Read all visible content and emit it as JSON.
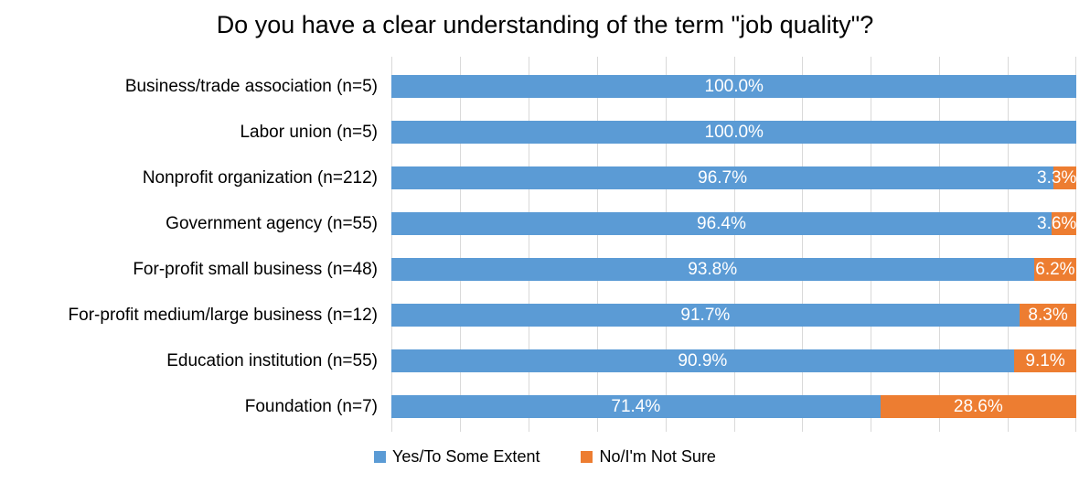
{
  "chart_data": {
    "type": "bar",
    "orientation": "horizontal",
    "stacking": "100%",
    "title": "Do you have a clear understanding of the term \"job quality\"?",
    "categories": [
      "Business/trade association (n=5)",
      "Labor union (n=5)",
      "Nonprofit organization (n=212)",
      "Government agency (n=55)",
      "For-profit small business (n=48)",
      "For-profit medium/large business (n=12)",
      "Education institution (n=55)",
      "Foundation (n=7)"
    ],
    "series": [
      {
        "name": "Yes/To Some Extent",
        "color": "#5B9BD5",
        "values": [
          100.0,
          100.0,
          96.7,
          96.4,
          93.8,
          91.7,
          90.9,
          71.4
        ],
        "labels": [
          "100.0%",
          "100.0%",
          "96.7%",
          "96.4%",
          "93.8%",
          "91.7%",
          "90.9%",
          "71.4%"
        ]
      },
      {
        "name": "No/I'm Not Sure",
        "color": "#ED7D31",
        "values": [
          0,
          0,
          3.3,
          3.6,
          6.2,
          8.3,
          9.1,
          28.6
        ],
        "labels": [
          "",
          "",
          "3.3%",
          "3.6%",
          "6.2%",
          "8.3%",
          "9.1%",
          "28.6%"
        ]
      }
    ],
    "xlim": [
      0,
      100
    ],
    "gridlines": {
      "step": 10,
      "color": "#D9D9D9"
    },
    "legend_position": "bottom",
    "data_label_color": "#FFFFFF",
    "background": "#FFFFFF"
  }
}
